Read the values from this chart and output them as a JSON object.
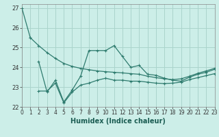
{
  "xlabel": "Humidex (Indice chaleur)",
  "background_color": "#cceee8",
  "grid_color": "#aad4cc",
  "line_color": "#2e7b6e",
  "xlim": [
    0,
    23
  ],
  "ylim": [
    22,
    27.2
  ],
  "yticks": [
    22,
    23,
    24,
    25,
    26,
    27
  ],
  "xticks": [
    0,
    1,
    2,
    3,
    4,
    5,
    6,
    7,
    8,
    9,
    10,
    11,
    12,
    13,
    14,
    15,
    16,
    17,
    18,
    19,
    20,
    21,
    22,
    23
  ],
  "xtick_labels": [
    "0",
    "1",
    "2",
    "3",
    "4",
    "5",
    "6",
    "7",
    "8",
    "9",
    "10",
    "11",
    "12",
    "13",
    "14",
    "15",
    "16",
    "17",
    "18",
    "19",
    "20",
    "21",
    "22",
    "23"
  ],
  "line1_x": [
    0,
    1
  ],
  "line1_y": [
    27.0,
    25.5
  ],
  "line2_x": [
    1,
    2,
    3,
    4,
    5,
    6,
    7,
    8,
    9,
    10,
    11,
    12,
    13,
    14,
    15,
    16,
    17,
    18,
    19,
    20,
    21,
    22,
    23
  ],
  "line2_y": [
    25.5,
    25.1,
    24.75,
    24.45,
    24.2,
    24.05,
    23.95,
    23.88,
    23.82,
    23.78,
    23.75,
    23.72,
    23.68,
    23.65,
    23.55,
    23.48,
    23.42,
    23.38,
    23.42,
    23.55,
    23.7,
    23.82,
    23.95
  ],
  "line3_x": [
    2,
    3,
    4,
    5,
    6,
    7,
    8,
    9,
    10,
    11,
    12,
    13,
    14,
    15,
    16,
    17,
    18,
    19,
    20,
    21,
    22,
    23
  ],
  "line3_y": [
    24.3,
    22.75,
    23.35,
    22.25,
    22.85,
    23.55,
    24.85,
    24.85,
    24.85,
    25.1,
    24.55,
    24.0,
    24.1,
    23.65,
    23.6,
    23.45,
    23.35,
    23.3,
    23.5,
    23.65,
    23.75,
    23.9
  ],
  "line4_x": [
    2,
    3,
    4,
    5,
    6,
    7,
    8,
    9,
    10,
    11,
    12,
    13,
    14,
    15,
    16,
    17,
    18,
    19,
    20,
    21,
    22,
    23
  ],
  "line4_y": [
    22.8,
    22.8,
    23.2,
    22.2,
    22.75,
    23.1,
    23.2,
    23.35,
    23.45,
    23.35,
    23.35,
    23.3,
    23.3,
    23.25,
    23.2,
    23.18,
    23.2,
    23.25,
    23.38,
    23.48,
    23.58,
    23.68
  ],
  "font_size_axis": 7,
  "font_size_tick": 6
}
